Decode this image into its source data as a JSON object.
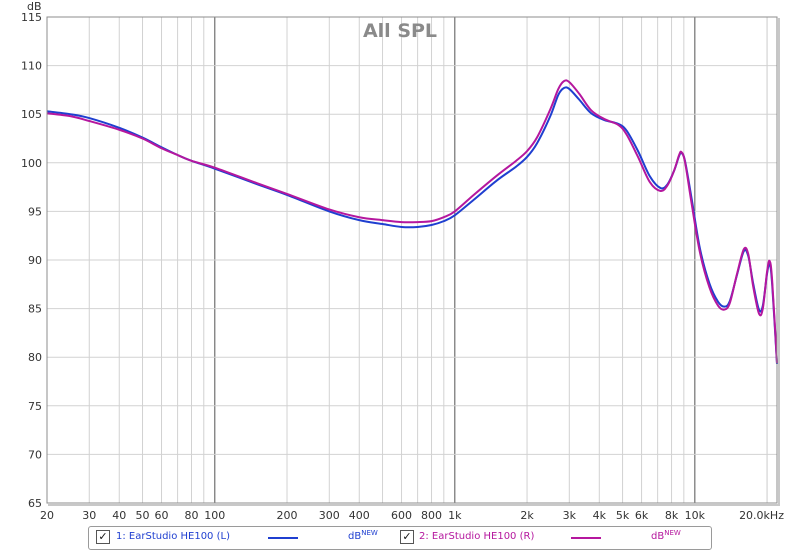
{
  "chart_data": {
    "type": "line",
    "title": "All SPL",
    "ylabel": "dB",
    "xlabel": "",
    "x_scale": "log",
    "xlim": [
      20,
      22000
    ],
    "ylim": [
      65,
      115
    ],
    "grid": true,
    "legend_placement": "bottom",
    "y_ticks": [
      {
        "v": 65,
        "label": "65"
      },
      {
        "v": 70,
        "label": "70"
      },
      {
        "v": 75,
        "label": "75"
      },
      {
        "v": 80,
        "label": "80"
      },
      {
        "v": 85,
        "label": "85"
      },
      {
        "v": 90,
        "label": "90"
      },
      {
        "v": 95,
        "label": "95"
      },
      {
        "v": 100,
        "label": "100"
      },
      {
        "v": 105,
        "label": "105"
      },
      {
        "v": 110,
        "label": "110"
      },
      {
        "v": 115,
        "label": "115"
      }
    ],
    "x_ticks": [
      {
        "v": 20,
        "label": "20"
      },
      {
        "v": 30,
        "label": "30"
      },
      {
        "v": 40,
        "label": "40"
      },
      {
        "v": 50,
        "label": "50"
      },
      {
        "v": 60,
        "label": "60"
      },
      {
        "v": 80,
        "label": "80"
      },
      {
        "v": 100,
        "label": "100"
      },
      {
        "v": 200,
        "label": "200"
      },
      {
        "v": 300,
        "label": "300"
      },
      {
        "v": 400,
        "label": "400"
      },
      {
        "v": 600,
        "label": "600"
      },
      {
        "v": 800,
        "label": "800"
      },
      {
        "v": 1000,
        "label": "1k"
      },
      {
        "v": 2000,
        "label": "2k"
      },
      {
        "v": 3000,
        "label": "3k"
      },
      {
        "v": 4000,
        "label": "4k"
      },
      {
        "v": 5000,
        "label": "5k"
      },
      {
        "v": 6000,
        "label": "6k"
      },
      {
        "v": 8000,
        "label": "8k"
      },
      {
        "v": 10000,
        "label": "10k"
      },
      {
        "v": 20000,
        "label": "20.0kHz"
      }
    ],
    "series": [
      {
        "name": "1: EarStudio HE100 (L)",
        "unit": "dB",
        "unit_sup": "NEW",
        "color": "#1f3fd0",
        "points": [
          [
            20,
            105.3
          ],
          [
            25,
            105.0
          ],
          [
            30,
            104.6
          ],
          [
            40,
            103.6
          ],
          [
            50,
            102.6
          ],
          [
            60,
            101.6
          ],
          [
            70,
            100.8
          ],
          [
            80,
            100.2
          ],
          [
            100,
            99.4
          ],
          [
            150,
            97.8
          ],
          [
            200,
            96.7
          ],
          [
            300,
            95.0
          ],
          [
            400,
            94.1
          ],
          [
            500,
            93.7
          ],
          [
            600,
            93.4
          ],
          [
            700,
            93.4
          ],
          [
            800,
            93.6
          ],
          [
            900,
            94.0
          ],
          [
            1000,
            94.6
          ],
          [
            1200,
            96.2
          ],
          [
            1500,
            98.2
          ],
          [
            1800,
            99.6
          ],
          [
            2000,
            100.6
          ],
          [
            2200,
            102.0
          ],
          [
            2500,
            104.8
          ],
          [
            2700,
            107.0
          ],
          [
            2850,
            107.7
          ],
          [
            3000,
            107.6
          ],
          [
            3300,
            106.5
          ],
          [
            3700,
            105.1
          ],
          [
            4200,
            104.4
          ],
          [
            4800,
            104.0
          ],
          [
            5200,
            103.3
          ],
          [
            5800,
            101.2
          ],
          [
            6500,
            98.6
          ],
          [
            7200,
            97.4
          ],
          [
            7700,
            97.8
          ],
          [
            8200,
            99.2
          ],
          [
            8600,
            100.7
          ],
          [
            8800,
            101.0
          ],
          [
            9100,
            100.2
          ],
          [
            9700,
            96.3
          ],
          [
            10500,
            91.2
          ],
          [
            11500,
            87.6
          ],
          [
            12500,
            85.7
          ],
          [
            13300,
            85.2
          ],
          [
            14000,
            85.8
          ],
          [
            15000,
            88.5
          ],
          [
            16000,
            90.9
          ],
          [
            16700,
            90.4
          ],
          [
            17500,
            87.6
          ],
          [
            18500,
            84.9
          ],
          [
            19200,
            85.3
          ],
          [
            20000,
            88.6
          ],
          [
            20500,
            89.6
          ],
          [
            21000,
            87.5
          ],
          [
            22000,
            79.3
          ]
        ]
      },
      {
        "name": "2: EarStudio HE100 (R)",
        "unit": "dB",
        "unit_sup": "NEW",
        "color": "#b5179e",
        "points": [
          [
            20,
            105.1
          ],
          [
            25,
            104.8
          ],
          [
            30,
            104.3
          ],
          [
            40,
            103.4
          ],
          [
            50,
            102.5
          ],
          [
            60,
            101.5
          ],
          [
            70,
            100.8
          ],
          [
            80,
            100.2
          ],
          [
            100,
            99.5
          ],
          [
            150,
            97.9
          ],
          [
            200,
            96.8
          ],
          [
            300,
            95.2
          ],
          [
            400,
            94.4
          ],
          [
            500,
            94.1
          ],
          [
            600,
            93.9
          ],
          [
            700,
            93.9
          ],
          [
            800,
            94.0
          ],
          [
            900,
            94.4
          ],
          [
            1000,
            95.0
          ],
          [
            1200,
            96.7
          ],
          [
            1500,
            98.7
          ],
          [
            1800,
            100.2
          ],
          [
            2000,
            101.2
          ],
          [
            2200,
            102.6
          ],
          [
            2500,
            105.5
          ],
          [
            2700,
            107.6
          ],
          [
            2850,
            108.4
          ],
          [
            3000,
            108.3
          ],
          [
            3300,
            107.1
          ],
          [
            3700,
            105.4
          ],
          [
            4200,
            104.5
          ],
          [
            4800,
            103.9
          ],
          [
            5200,
            102.9
          ],
          [
            5800,
            100.6
          ],
          [
            6500,
            98.0
          ],
          [
            7200,
            97.1
          ],
          [
            7700,
            97.7
          ],
          [
            8200,
            99.2
          ],
          [
            8600,
            100.8
          ],
          [
            8800,
            101.1
          ],
          [
            9100,
            100.1
          ],
          [
            9700,
            95.8
          ],
          [
            10500,
            90.8
          ],
          [
            11500,
            87.2
          ],
          [
            12500,
            85.3
          ],
          [
            13300,
            84.9
          ],
          [
            14000,
            85.6
          ],
          [
            15000,
            88.6
          ],
          [
            16000,
            91.1
          ],
          [
            16700,
            90.6
          ],
          [
            17500,
            87.3
          ],
          [
            18500,
            84.5
          ],
          [
            19200,
            85.0
          ],
          [
            20000,
            88.8
          ],
          [
            20500,
            89.9
          ],
          [
            21000,
            87.9
          ],
          [
            22000,
            79.4
          ]
        ]
      }
    ]
  },
  "legend": {
    "items": [
      {
        "label": "1: EarStudio HE100 (L)",
        "unit": "dB",
        "unit_sup": "NEW",
        "color": "#1f3fd0"
      },
      {
        "label": "2: EarStudio HE100 (R)",
        "unit": "dB",
        "unit_sup": "NEW",
        "color": "#b5179e"
      }
    ]
  }
}
